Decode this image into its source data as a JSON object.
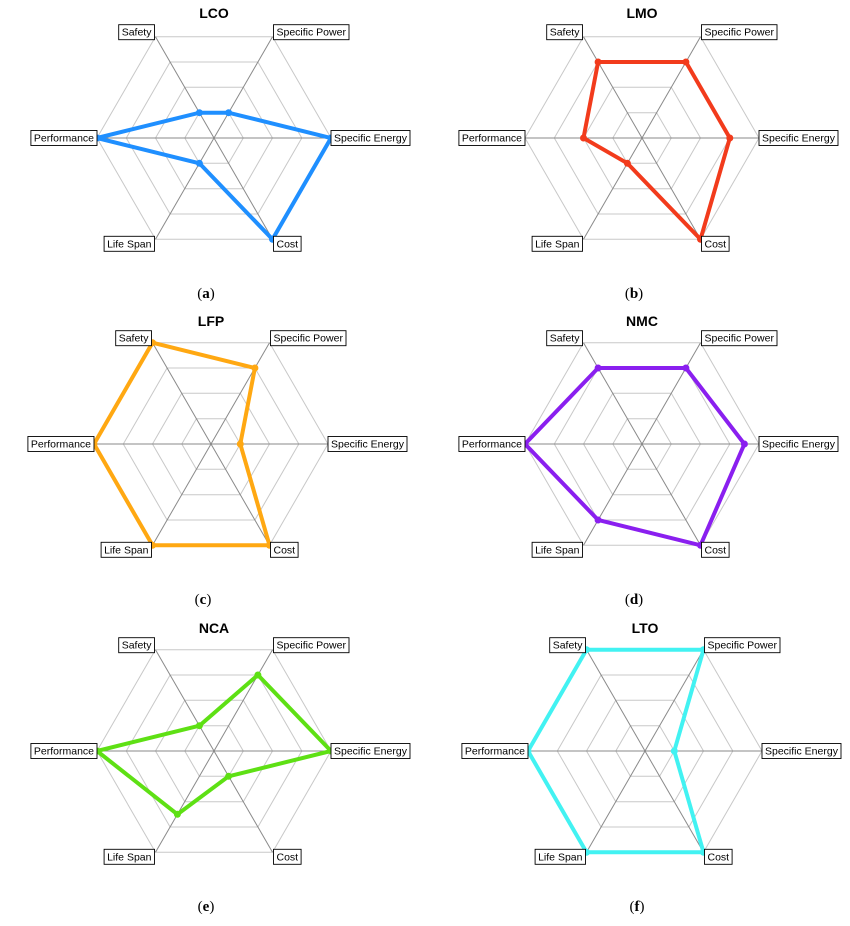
{
  "figure": {
    "axes": [
      "Safety",
      "Specific Power",
      "Specific Energy",
      "Cost",
      "Life Span",
      "Performance"
    ],
    "levels": 4
  },
  "chart_data": [
    {
      "type": "radar",
      "title": "LCO",
      "caption": "a",
      "color": "#1f8fff",
      "axes": [
        "Safety",
        "Specific Power",
        "Specific Energy",
        "Cost",
        "Life Span",
        "Performance"
      ],
      "values": [
        1,
        1,
        4,
        4,
        1,
        4
      ],
      "range": [
        0,
        4
      ],
      "grid": true
    },
    {
      "type": "radar",
      "title": "LMO",
      "caption": "b",
      "color": "#f23b1c",
      "axes": [
        "Safety",
        "Specific Power",
        "Specific Energy",
        "Cost",
        "Life Span",
        "Performance"
      ],
      "values": [
        3,
        3,
        3,
        4,
        1,
        2
      ],
      "range": [
        0,
        4
      ],
      "grid": true
    },
    {
      "type": "radar",
      "title": "LFP",
      "caption": "c",
      "color": "#ffa812",
      "axes": [
        "Safety",
        "Specific Power",
        "Specific Energy",
        "Cost",
        "Life Span",
        "Performance"
      ],
      "values": [
        4,
        3,
        1,
        4,
        4,
        4
      ],
      "range": [
        0,
        4
      ],
      "grid": true
    },
    {
      "type": "radar",
      "title": "NMC",
      "caption": "d",
      "color": "#8a1fef",
      "axes": [
        "Safety",
        "Specific Power",
        "Specific Energy",
        "Cost",
        "Life Span",
        "Performance"
      ],
      "values": [
        3,
        3,
        3.5,
        4,
        3,
        4
      ],
      "range": [
        0,
        4
      ],
      "grid": true
    },
    {
      "type": "radar",
      "title": "NCA",
      "caption": "e",
      "color": "#5ee014",
      "axes": [
        "Safety",
        "Specific Power",
        "Specific Energy",
        "Cost",
        "Life Span",
        "Performance"
      ],
      "values": [
        1,
        3,
        4,
        1,
        2.5,
        4
      ],
      "range": [
        0,
        4
      ],
      "grid": true
    },
    {
      "type": "radar",
      "title": "LTO",
      "caption": "f",
      "color": "#42f2f2",
      "axes": [
        "Safety",
        "Specific Power",
        "Specific Energy",
        "Cost",
        "Life Span",
        "Performance"
      ],
      "values": [
        4,
        4,
        1,
        4,
        4,
        4
      ],
      "range": [
        0,
        4
      ],
      "grid": true
    }
  ]
}
